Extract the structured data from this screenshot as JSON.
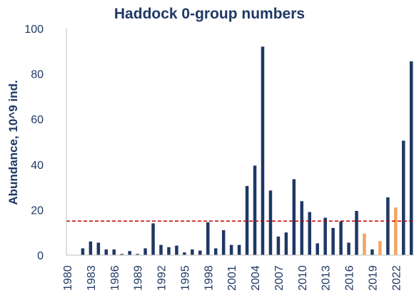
{
  "colors": {
    "primary": "#1f3864",
    "highlight": "#f4a460",
    "reference_line": "#c00000",
    "axis": "#bfbfbf"
  },
  "chart_data": {
    "type": "bar",
    "title": "Haddock 0-group numbers",
    "xlabel": "",
    "ylabel": "Abundance, 10^9 ind.",
    "ylim": [
      0,
      100
    ],
    "yticks": [
      0,
      20,
      40,
      60,
      80,
      100
    ],
    "xtick_labels": [
      "1980",
      "1983",
      "1986",
      "1989",
      "1992",
      "1995",
      "1998",
      "2001",
      "2004",
      "2007",
      "2010",
      "2013",
      "2016",
      "2019",
      "2022"
    ],
    "x": [
      1980,
      1981,
      1982,
      1983,
      1984,
      1985,
      1986,
      1987,
      1988,
      1989,
      1990,
      1991,
      1992,
      1993,
      1994,
      1995,
      1996,
      1997,
      1998,
      1999,
      2000,
      2001,
      2002,
      2003,
      2004,
      2005,
      2006,
      2007,
      2008,
      2009,
      2010,
      2011,
      2012,
      2013,
      2014,
      2015,
      2016,
      2017,
      2018,
      2019,
      2020,
      2021,
      2022,
      2023,
      2024
    ],
    "values": [
      0,
      0,
      3,
      6,
      5.5,
      2.5,
      2.5,
      0.5,
      1.8,
      0.5,
      3,
      14,
      4.5,
      3.5,
      4.2,
      1.2,
      2.5,
      2,
      14.5,
      3,
      11,
      4.5,
      4.5,
      30.5,
      39.5,
      92,
      28.5,
      8.2,
      10,
      33.5,
      23.8,
      19,
      5.2,
      16.5,
      12,
      14.8,
      5.5,
      19.5,
      9.5,
      2.5,
      6.2,
      25.5,
      21,
      50.5,
      85.5
    ],
    "highlighted": [
      false,
      false,
      false,
      false,
      false,
      false,
      false,
      false,
      false,
      false,
      false,
      false,
      false,
      false,
      false,
      false,
      false,
      false,
      false,
      false,
      false,
      false,
      false,
      false,
      false,
      false,
      false,
      false,
      false,
      false,
      false,
      false,
      false,
      false,
      false,
      false,
      false,
      false,
      true,
      false,
      true,
      false,
      true,
      false,
      false
    ],
    "reference_line": 15,
    "grid": false
  }
}
